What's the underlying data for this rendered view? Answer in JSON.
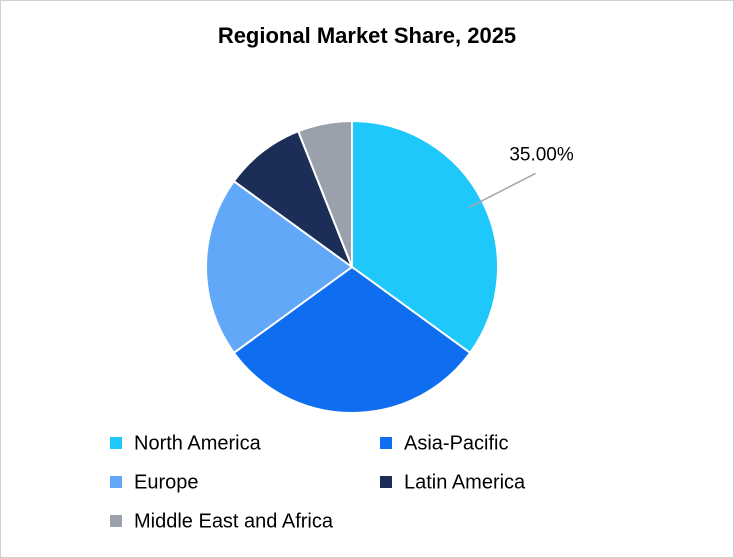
{
  "chart_data": {
    "type": "pie",
    "title": "Regional Market Share, 2025",
    "categories": [
      "North America",
      "Asia-Pacific",
      "Europe",
      "Latin America",
      "Middle East and Africa"
    ],
    "values": [
      35,
      30,
      20,
      9,
      6
    ],
    "value_labels": [
      "35.00%",
      null,
      null,
      null,
      null
    ],
    "colors": [
      "#1ec8fa",
      "#0f6ef0",
      "#62a8f8",
      "#1c2e57",
      "#9aa0ac"
    ],
    "legend": "bottom"
  }
}
